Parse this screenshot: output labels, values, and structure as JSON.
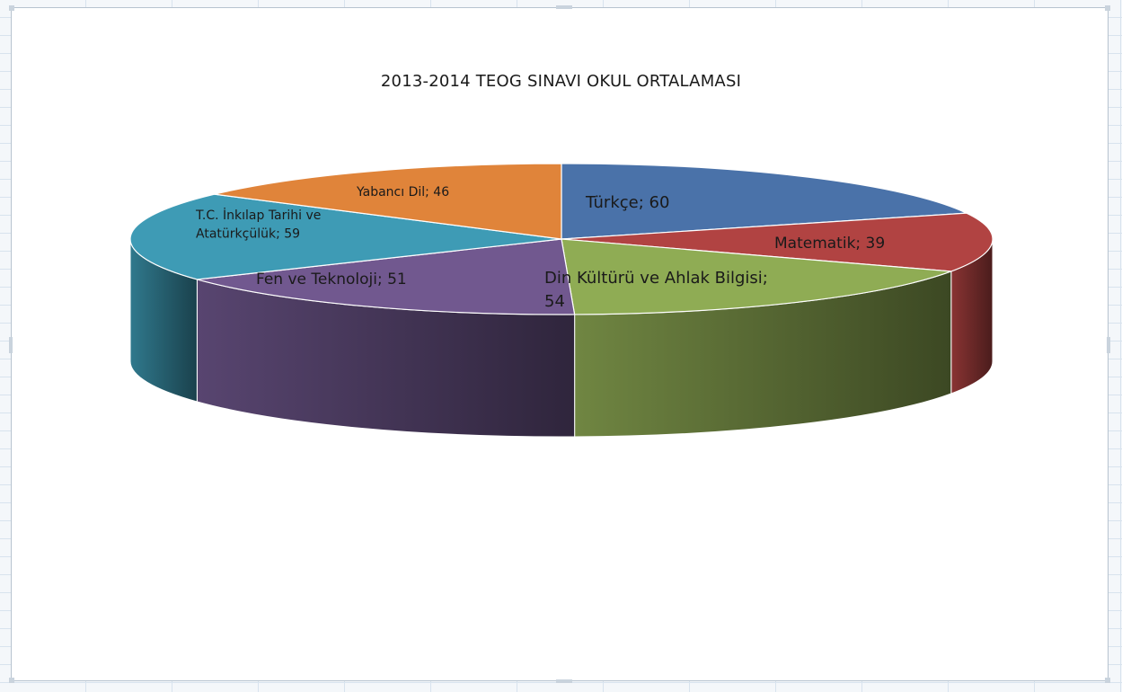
{
  "chart_data": {
    "type": "pie",
    "title": "2013-2014 TEOG SINAVI OKUL ORTALAMASI",
    "slices": [
      {
        "label": "Türkçe",
        "value": 60,
        "data_label": "Türkçe; 60",
        "color": "#4a72a9"
      },
      {
        "label": "Matematik",
        "value": 39,
        "data_label": "Matematik; 39",
        "color": "#b14342"
      },
      {
        "label": "Din Kültürü ve Ahlak Bilgisi",
        "value": 54,
        "data_label": "Din Kültürü ve Ahlak Bilgisi; 54",
        "color": "#8fac54"
      },
      {
        "label": "Fen ve Teknoloji",
        "value": 51,
        "data_label": "Fen ve Teknoloji; 51",
        "color": "#71588f"
      },
      {
        "label": "T.C. İnkılap Tarihi ve Atatürkçülük",
        "value": 59,
        "data_label": "T.C. İnkılap Tarihi ve Atatürkçülük; 59",
        "color": "#3e9bb5"
      },
      {
        "label": "Yabancı Dil",
        "value": 46,
        "data_label": "Yabancı Dil; 46",
        "color": "#e0843a"
      }
    ],
    "legend": "none",
    "style": "3d-pie"
  }
}
